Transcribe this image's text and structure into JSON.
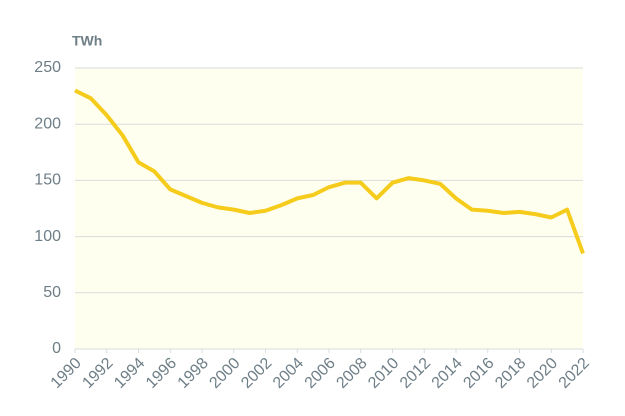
{
  "chart_data": {
    "type": "line",
    "y_unit": "TWh",
    "x": [
      1990,
      1991,
      1992,
      1993,
      1994,
      1995,
      1996,
      1997,
      1998,
      1999,
      2000,
      2001,
      2002,
      2003,
      2004,
      2005,
      2006,
      2007,
      2008,
      2009,
      2010,
      2011,
      2012,
      2013,
      2014,
      2015,
      2016,
      2017,
      2018,
      2019,
      2020,
      2021,
      2022
    ],
    "series": [
      {
        "color": "#f5cb1c",
        "values": [
          230,
          223,
          208,
          190,
          166,
          158,
          142,
          136,
          130,
          126,
          124,
          121,
          123,
          128,
          134,
          137,
          144,
          148,
          148,
          134,
          148,
          152,
          150,
          147,
          134,
          124,
          123,
          121,
          122,
          120,
          117,
          124,
          85
        ]
      }
    ],
    "xlim": [
      1990,
      2022
    ],
    "xticks": [
      1990,
      1992,
      1994,
      1996,
      1998,
      2000,
      2002,
      2004,
      2006,
      2008,
      2010,
      2012,
      2014,
      2016,
      2018,
      2020,
      2022
    ],
    "ylim": [
      0,
      250
    ],
    "yticks": [
      0,
      50,
      100,
      150,
      200,
      250
    ],
    "grid": true
  }
}
